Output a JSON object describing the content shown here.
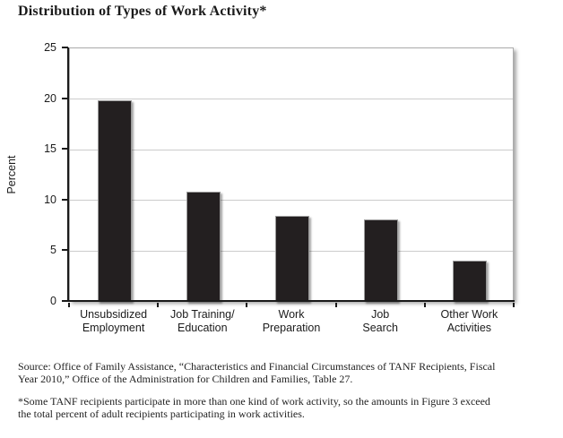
{
  "title": "Distribution of Types of Work Activity*",
  "chart_data": {
    "type": "bar",
    "title": "Distribution of Types of Work Activity*",
    "categories": [
      "Unsubsidized Employment",
      "Job Training/Education",
      "Work Preparation",
      "Job Search",
      "Other Work Activities"
    ],
    "category_label_lines": [
      [
        "Unsubsidized",
        "Employment"
      ],
      [
        "Job Training/",
        "Education"
      ],
      [
        "Work",
        "Preparation"
      ],
      [
        "Job",
        "Search"
      ],
      [
        "Other Work",
        "Activities"
      ]
    ],
    "values": [
      19.9,
      10.9,
      8.5,
      8.1,
      4.1
    ],
    "xlabel": "",
    "ylabel": "Percent",
    "ylim": [
      0,
      25
    ],
    "yticks": [
      0,
      5,
      10,
      15,
      20,
      25
    ],
    "grid": true,
    "legend": "none",
    "bar_color": "#231f20",
    "gridline_color": "#cccccc",
    "axis_color": "#1a1a1a"
  },
  "footer": {
    "source_lines": [
      "Source: Office of Family Assistance, “Characteristics and Financial Circumstances of TANF Recipients, Fiscal",
      "Year 2010,” Office of the Administration for Children and Families, Table 27."
    ],
    "footnote_lines": [
      "*Some TANF recipients participate in more than one kind of work activity, so the amounts in Figure 3 exceed",
      "the total percent of adult recipients participating in work activities."
    ]
  }
}
